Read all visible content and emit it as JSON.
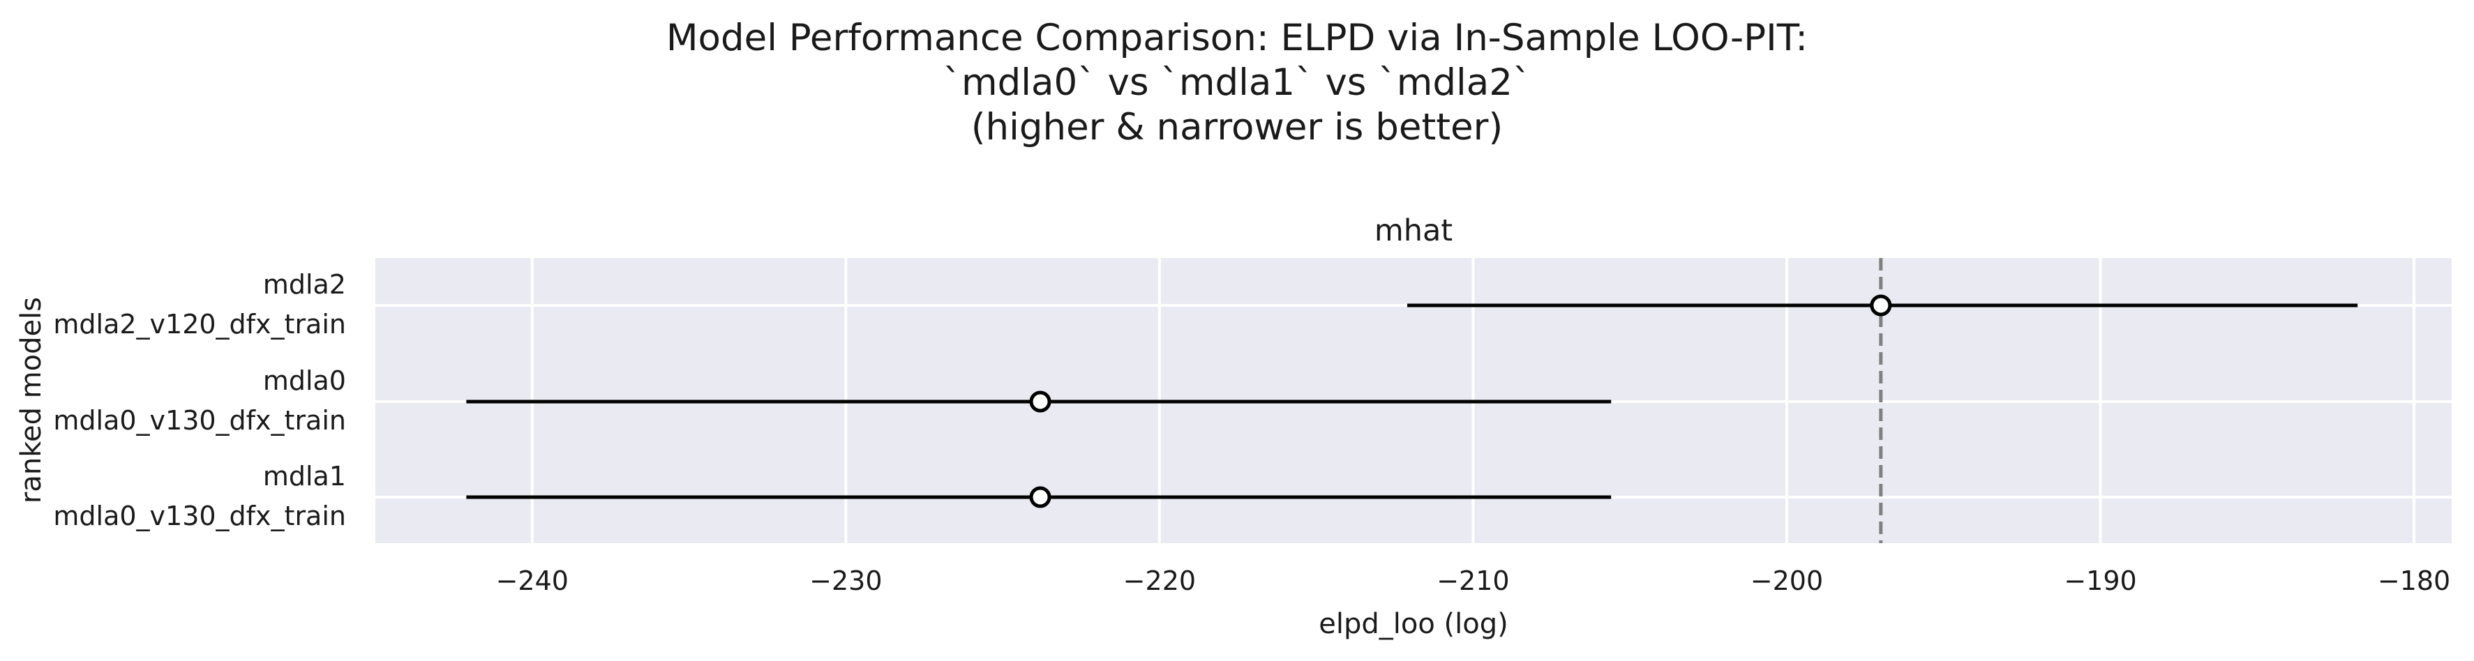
{
  "title_lines": [
    "Model Performance Comparison: ELPD via In-Sample LOO-PIT:",
    "`mdla0` vs `mdla1` vs `mdla2`",
    "(higher & narrower is better)"
  ],
  "chart_data": {
    "type": "forest",
    "panel_title": "mhat",
    "xlabel": "elpd_loo (log)",
    "ylabel": "ranked models",
    "xlim": [
      -245,
      -178.8
    ],
    "xticks": [
      -240,
      -230,
      -220,
      -210,
      -200,
      -190,
      -180
    ],
    "xtick_labels": [
      "−240",
      "−230",
      "−220",
      "−210",
      "−200",
      "−190",
      "−180"
    ],
    "reference_line": -197.0,
    "grid": true,
    "models": [
      {
        "label_top": "mdla2",
        "label_bottom": "mdla2_v120_dfx_train",
        "elpd": -197.0,
        "lower": -212.1,
        "upper": -181.8
      },
      {
        "label_top": "mdla0",
        "label_bottom": "mdla0_v130_dfx_train",
        "elpd": -223.8,
        "lower": -242.1,
        "upper": -205.6
      },
      {
        "label_top": "mdla1",
        "label_bottom": "mdla0_v130_dfx_train",
        "elpd": -223.8,
        "lower": -242.1,
        "upper": -205.6
      }
    ],
    "colors": {
      "panel_background": "#EAEAF2",
      "grid": "#FFFFFF",
      "interval": "#000000",
      "marker_fill": "#FFFFFF",
      "marker_edge": "#000000",
      "reference_line": "#808080"
    }
  }
}
